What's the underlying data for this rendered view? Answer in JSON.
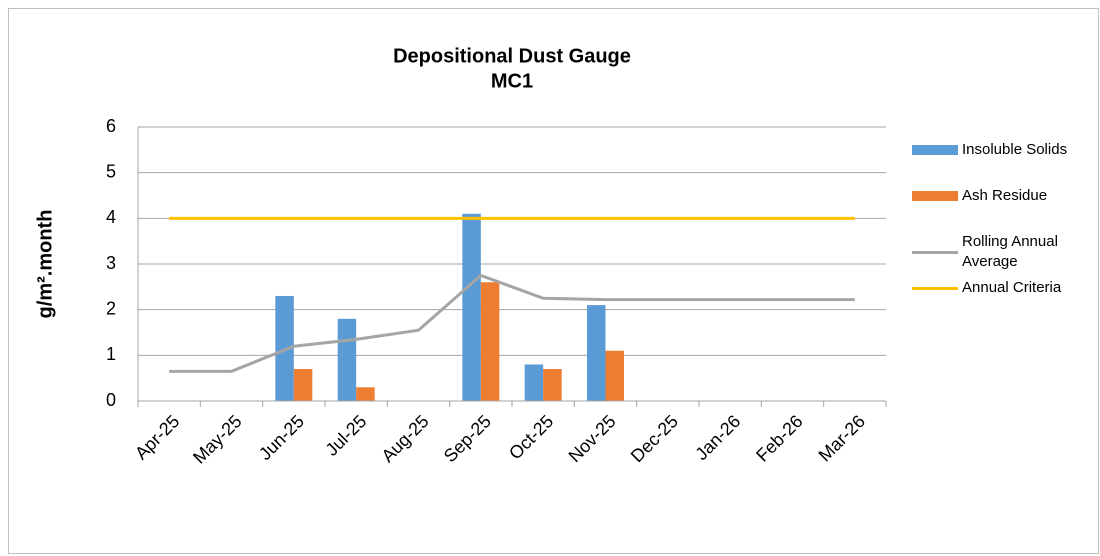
{
  "chart_data": {
    "type": "bar",
    "title": "Depositional Dust Gauge",
    "subtitle": "MC1",
    "y_label": "g/m².month",
    "categories": [
      "Apr-25",
      "May-25",
      "Jun-25",
      "Jul-25",
      "Aug-25",
      "Sep-25",
      "Oct-25",
      "Nov-25",
      "Dec-25",
      "Jan-26",
      "Feb-26",
      "Mar-26"
    ],
    "series": [
      {
        "name": "Insoluble Solids",
        "color": "#5b9bd5",
        "type": "bar",
        "values": [
          null,
          null,
          2.3,
          1.8,
          null,
          4.1,
          0.8,
          2.1,
          null,
          null,
          null,
          null
        ]
      },
      {
        "name": "Ash Residue",
        "color": "#ed7d31",
        "type": "bar",
        "values": [
          null,
          null,
          0.7,
          0.3,
          null,
          2.6,
          0.7,
          1.1,
          null,
          null,
          null,
          null
        ]
      },
      {
        "name": "Rolling Annual Average",
        "color": "#a5a5a5",
        "type": "line",
        "values": [
          0.65,
          0.65,
          1.2,
          1.35,
          1.55,
          2.75,
          2.25,
          2.22,
          2.22,
          2.22,
          2.22,
          2.22
        ]
      },
      {
        "name": "Annual Criteria",
        "color": "#ffc000",
        "type": "line",
        "values": [
          4,
          4,
          4,
          4,
          4,
          4,
          4,
          4,
          4,
          4,
          4,
          4
        ]
      }
    ],
    "ylim": [
      0,
      6
    ],
    "yticks": [
      0,
      1,
      2,
      3,
      4,
      5,
      6
    ],
    "grid": true,
    "legend": "right"
  }
}
